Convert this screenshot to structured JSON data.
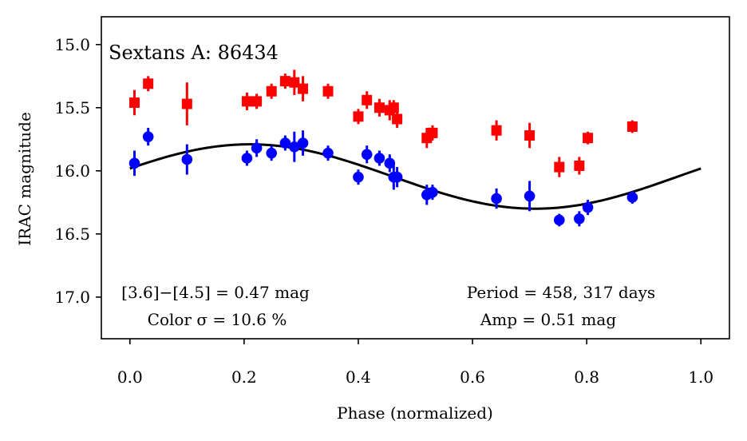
{
  "chart_data": {
    "type": "scatter",
    "title": "Sextans A: 86434",
    "xlabel": "Phase (normalized)",
    "ylabel": "IRAC magnitude",
    "xlim": [
      -0.05,
      1.05
    ],
    "ylim": [
      17.33,
      14.78
    ],
    "y_inverted": true,
    "xticks": [
      0.0,
      0.2,
      0.4,
      0.6,
      0.8,
      1.0
    ],
    "xtick_labels": [
      "0.0",
      "0.2",
      "0.4",
      "0.6",
      "0.8",
      "1.0"
    ],
    "yticks": [
      15.0,
      15.5,
      16.0,
      16.5,
      17.0
    ],
    "ytick_labels": [
      "15.0",
      "15.5",
      "16.0",
      "16.5",
      "17.0"
    ],
    "annotations": {
      "color_line1": "[3.6]−[4.5] = 0.47 mag",
      "color_line2": "Color σ = 10.6 %",
      "period_line1": "Period = 458, 317 days",
      "period_line2": "Amp = 0.51 mag"
    },
    "colors": {
      "red": "#ff0000",
      "blue": "#0000ff",
      "model": "#000000"
    },
    "series": [
      {
        "name": "[4.5] (red squares)",
        "marker": "square",
        "color": "#ff0000",
        "points": [
          {
            "x": 0.008,
            "y": 15.46,
            "err": 0.1
          },
          {
            "x": 0.032,
            "y": 15.31,
            "err": 0.06
          },
          {
            "x": 0.1,
            "y": 15.47,
            "err": 0.17
          },
          {
            "x": 0.205,
            "y": 15.45,
            "err": 0.07
          },
          {
            "x": 0.222,
            "y": 15.45,
            "err": 0.06
          },
          {
            "x": 0.248,
            "y": 15.37,
            "err": 0.06
          },
          {
            "x": 0.272,
            "y": 15.29,
            "err": 0.06
          },
          {
            "x": 0.288,
            "y": 15.3,
            "err": 0.1
          },
          {
            "x": 0.303,
            "y": 15.35,
            "err": 0.1
          },
          {
            "x": 0.347,
            "y": 15.37,
            "err": 0.06
          },
          {
            "x": 0.4,
            "y": 15.57,
            "err": 0.06
          },
          {
            "x": 0.415,
            "y": 15.44,
            "err": 0.07
          },
          {
            "x": 0.437,
            "y": 15.5,
            "err": 0.07
          },
          {
            "x": 0.455,
            "y": 15.52,
            "err": 0.08
          },
          {
            "x": 0.462,
            "y": 15.5,
            "err": 0.06
          },
          {
            "x": 0.468,
            "y": 15.59,
            "err": 0.07
          },
          {
            "x": 0.52,
            "y": 15.74,
            "err": 0.08
          },
          {
            "x": 0.53,
            "y": 15.7,
            "err": 0.06
          },
          {
            "x": 0.642,
            "y": 15.68,
            "err": 0.08
          },
          {
            "x": 0.7,
            "y": 15.72,
            "err": 0.1
          },
          {
            "x": 0.752,
            "y": 15.97,
            "err": 0.08
          },
          {
            "x": 0.787,
            "y": 15.96,
            "err": 0.07
          },
          {
            "x": 0.802,
            "y": 15.74,
            "err": 0.05
          },
          {
            "x": 0.88,
            "y": 15.65,
            "err": 0.05
          }
        ]
      },
      {
        "name": "[3.6] (blue circles)",
        "marker": "circle",
        "color": "#0000ff",
        "points": [
          {
            "x": 0.008,
            "y": 15.94,
            "err": 0.1
          },
          {
            "x": 0.032,
            "y": 15.73,
            "err": 0.07
          },
          {
            "x": 0.1,
            "y": 15.91,
            "err": 0.12
          },
          {
            "x": 0.205,
            "y": 15.9,
            "err": 0.06
          },
          {
            "x": 0.222,
            "y": 15.82,
            "err": 0.07
          },
          {
            "x": 0.248,
            "y": 15.86,
            "err": 0.06
          },
          {
            "x": 0.272,
            "y": 15.78,
            "err": 0.06
          },
          {
            "x": 0.288,
            "y": 15.81,
            "err": 0.12
          },
          {
            "x": 0.303,
            "y": 15.78,
            "err": 0.1
          },
          {
            "x": 0.347,
            "y": 15.86,
            "err": 0.06
          },
          {
            "x": 0.4,
            "y": 16.05,
            "err": 0.06
          },
          {
            "x": 0.415,
            "y": 15.87,
            "err": 0.07
          },
          {
            "x": 0.437,
            "y": 15.9,
            "err": 0.06
          },
          {
            "x": 0.455,
            "y": 15.94,
            "err": 0.07
          },
          {
            "x": 0.462,
            "y": 16.05,
            "err": 0.1
          },
          {
            "x": 0.468,
            "y": 16.05,
            "err": 0.08
          },
          {
            "x": 0.52,
            "y": 16.19,
            "err": 0.08
          },
          {
            "x": 0.53,
            "y": 16.17,
            "err": 0.06
          },
          {
            "x": 0.642,
            "y": 16.22,
            "err": 0.08
          },
          {
            "x": 0.7,
            "y": 16.2,
            "err": 0.12
          },
          {
            "x": 0.752,
            "y": 16.39,
            "err": 0.05
          },
          {
            "x": 0.787,
            "y": 16.38,
            "err": 0.06
          },
          {
            "x": 0.802,
            "y": 16.29,
            "err": 0.06
          },
          {
            "x": 0.88,
            "y": 16.21,
            "err": 0.05
          }
        ]
      }
    ],
    "model": {
      "name": "sinusoidal fit",
      "type": "sine",
      "mean": 16.045,
      "amplitude": 0.255,
      "phase_of_max_brightness": 0.21,
      "x_range": [
        0.0,
        1.0
      ]
    }
  }
}
